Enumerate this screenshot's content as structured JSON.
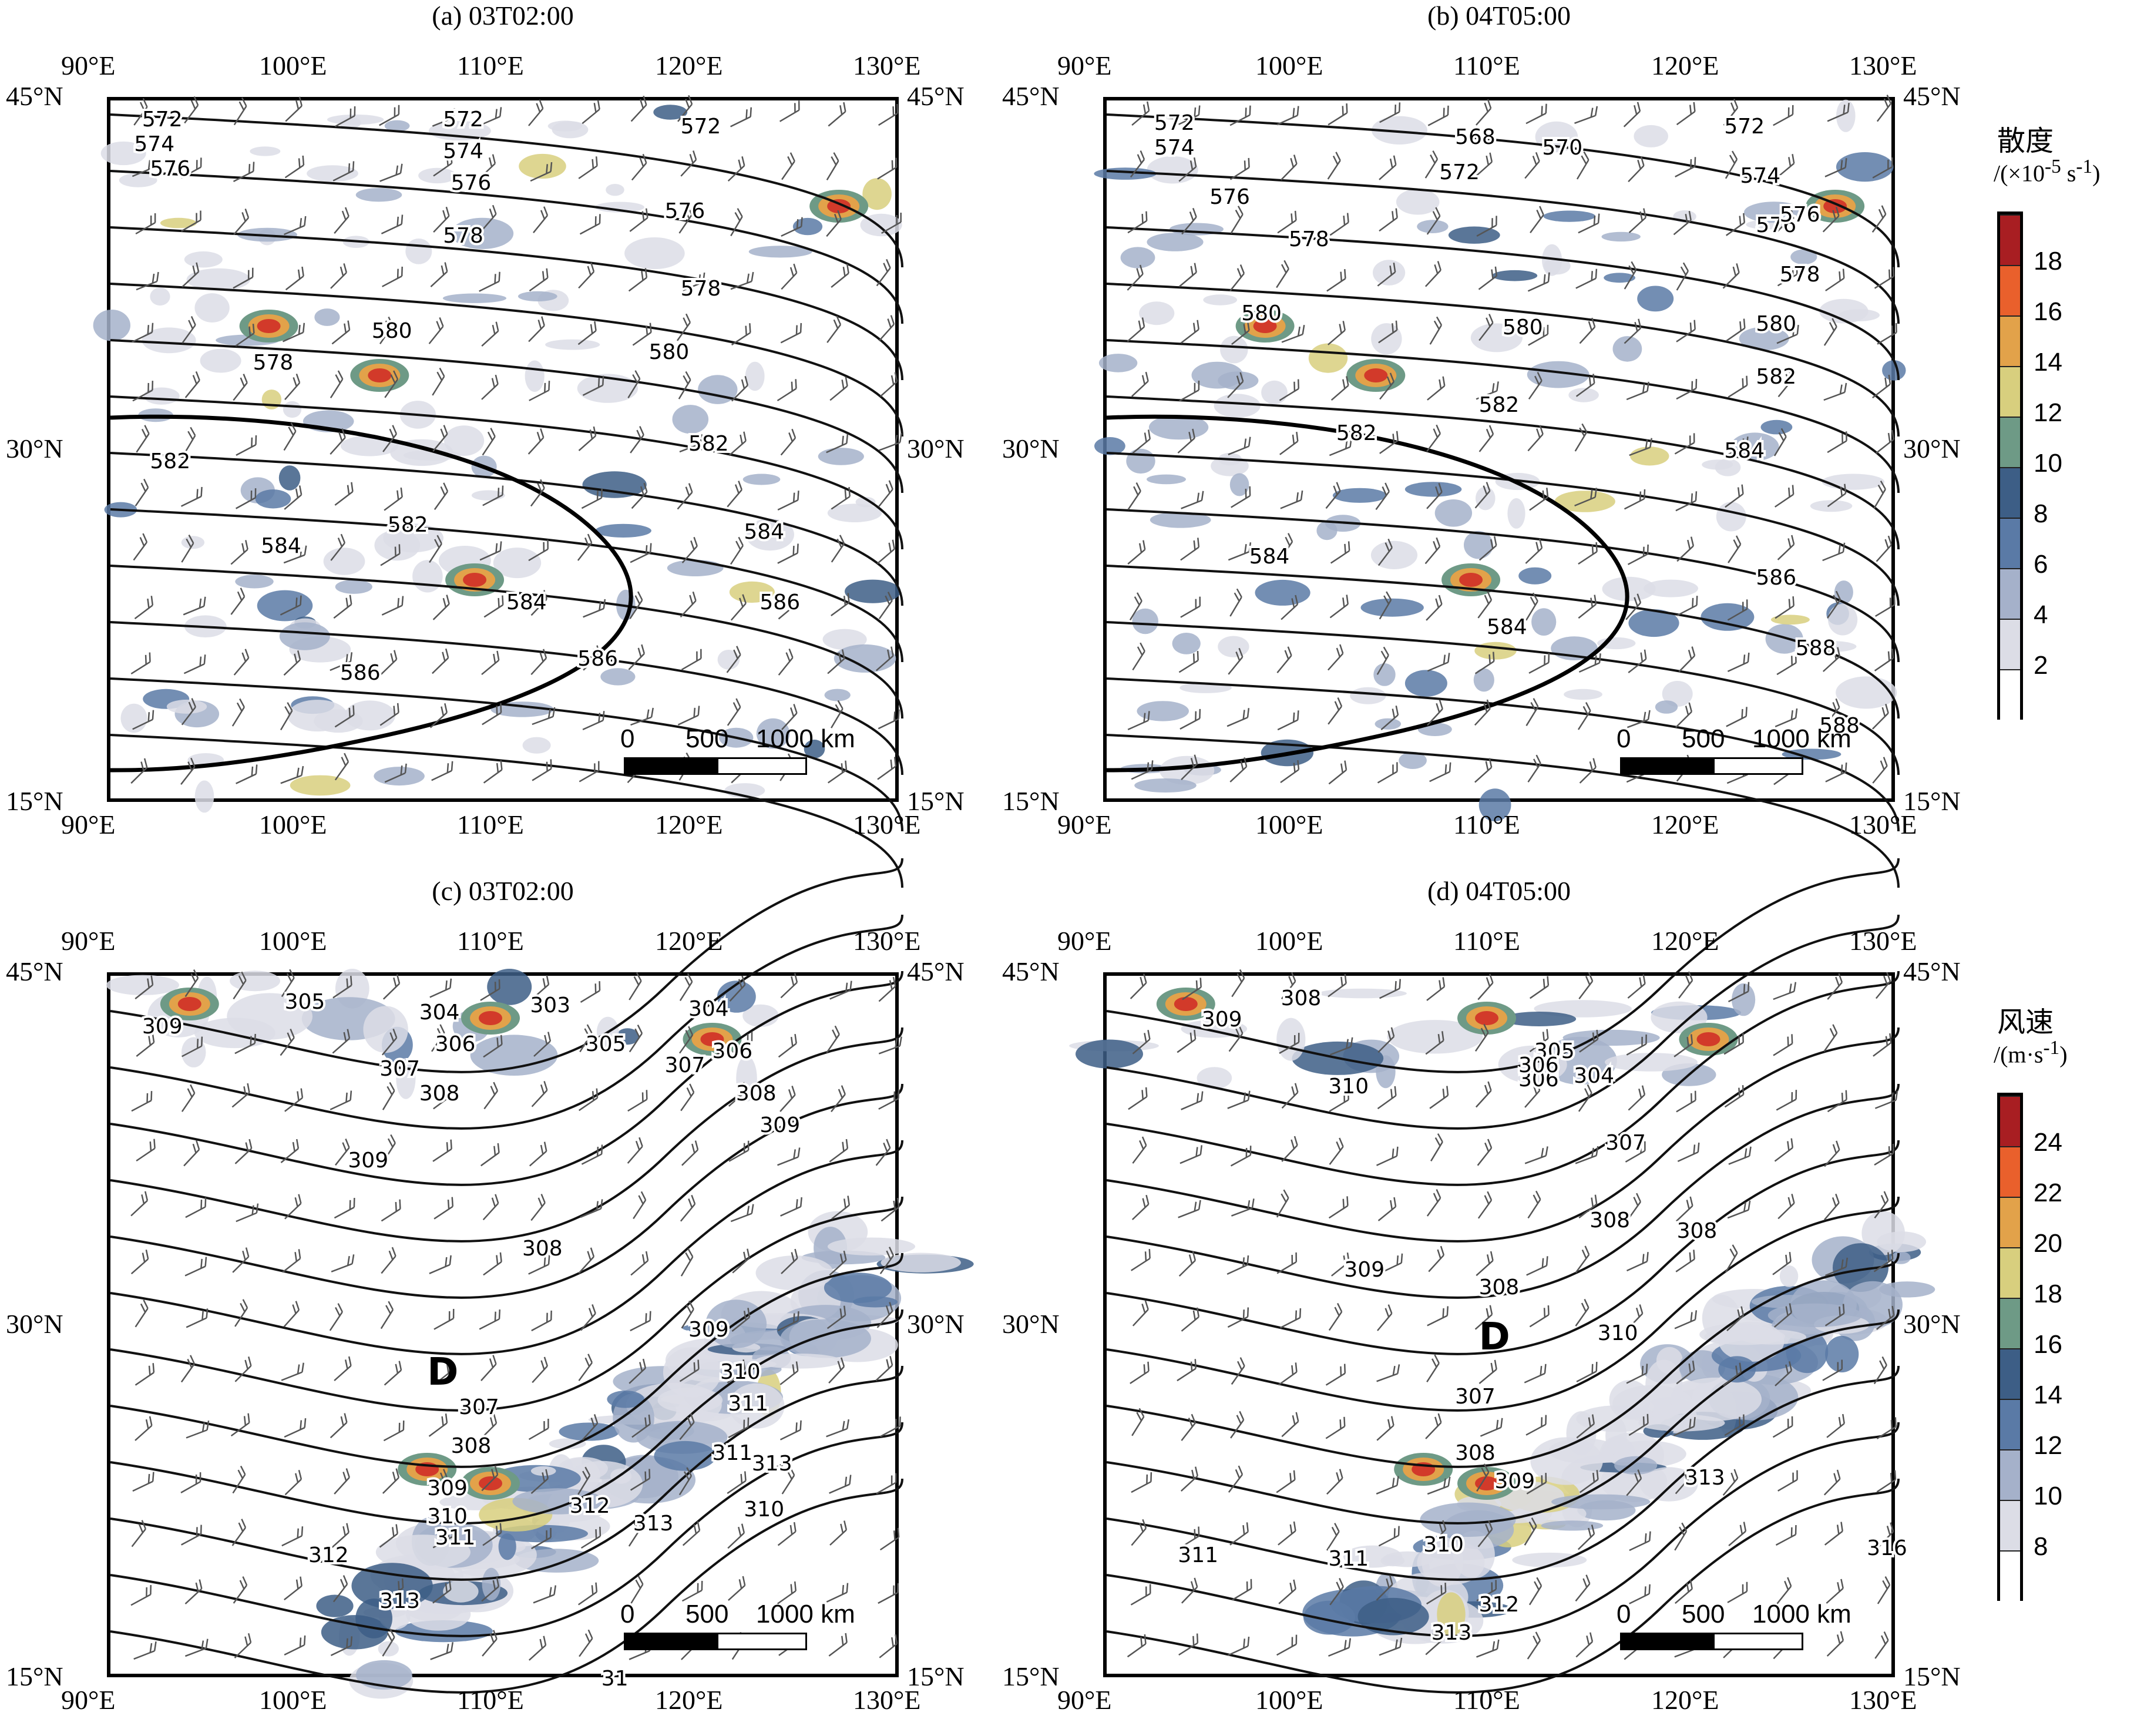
{
  "panels": [
    {
      "id": "a",
      "title": "(a) 03T02:00",
      "contour_labels": [
        "572",
        "574",
        "576",
        "572",
        "574",
        "572",
        "576",
        "576",
        "578",
        "578",
        "580",
        "580",
        "578",
        "582",
        "582",
        "582",
        "584",
        "584",
        "584",
        "586",
        "586",
        "586"
      ],
      "scalebar": {
        "zero": "0",
        "mid": "500",
        "end": "1000 km"
      }
    },
    {
      "id": "b",
      "title": "(b) 04T05:00",
      "contour_labels": [
        "572",
        "574",
        "576",
        "568",
        "570",
        "572",
        "572",
        "574",
        "576",
        "578",
        "576",
        "578",
        "580",
        "580",
        "580",
        "582",
        "582",
        "582",
        "584",
        "584",
        "584",
        "586",
        "588",
        "588"
      ],
      "scalebar": {
        "zero": "0",
        "mid": "500",
        "end": "1000 km"
      }
    },
    {
      "id": "c",
      "title": "(c) 03T02:00",
      "contour_labels": [
        "309",
        "305",
        "304",
        "303",
        "304",
        "306",
        "305",
        "306",
        "307",
        "307",
        "308",
        "308",
        "309",
        "309",
        "308",
        "309",
        "310",
        "311",
        "307",
        "308",
        "309",
        "310",
        "311",
        "312",
        "312",
        "313",
        "313",
        "310",
        "311",
        "313",
        "31"
      ],
      "low_label": "D",
      "scalebar": {
        "zero": "0",
        "mid": "500",
        "end": "1000 km"
      }
    },
    {
      "id": "d",
      "title": "(d) 04T05:00",
      "contour_labels": [
        "308",
        "309",
        "310",
        "305",
        "306",
        "304",
        "306",
        "307",
        "308",
        "308",
        "309",
        "308",
        "307",
        "308",
        "309",
        "310",
        "311",
        "310",
        "311",
        "312",
        "313",
        "313",
        "316"
      ],
      "low_label": "D",
      "scalebar": {
        "zero": "0",
        "mid": "500",
        "end": "1000 km"
      }
    }
  ],
  "axes": {
    "lon_ticks": [
      "90°E",
      "100°E",
      "110°E",
      "120°E",
      "130°E"
    ],
    "lat_ticks": [
      "45°N",
      "30°N",
      "15°N"
    ]
  },
  "legends": [
    {
      "id": "divergence",
      "title": "散度",
      "unit_html": "/(×10<sup>-5</sup> s<sup>-1</sup>)",
      "unit": "/(×10-5 s-1)",
      "labels": [
        "18",
        "16",
        "14",
        "12",
        "10",
        "8",
        "6",
        "4",
        "2"
      ],
      "colors": [
        "#a81e22",
        "#d23a2a",
        "#e9602c",
        "#e2a24a",
        "#d8cf7e",
        "#6e9a86",
        "#3d5e86",
        "#5a7aa6",
        "#a5b1ca",
        "#dcdde6",
        "#ffffff"
      ]
    },
    {
      "id": "wind-speed",
      "title": "风速",
      "unit_html": "/(m·s<sup>-1</sup>)",
      "unit": "/(m·s-1)",
      "labels": [
        "24",
        "22",
        "20",
        "18",
        "16",
        "14",
        "12",
        "10",
        "8"
      ],
      "colors": [
        "#a81e22",
        "#d23a2a",
        "#e9602c",
        "#e2a24a",
        "#d8cf7e",
        "#6e9a86",
        "#3d5e86",
        "#5a7aa6",
        "#a5b1ca",
        "#dcdde6",
        "#ffffff"
      ]
    }
  ]
}
